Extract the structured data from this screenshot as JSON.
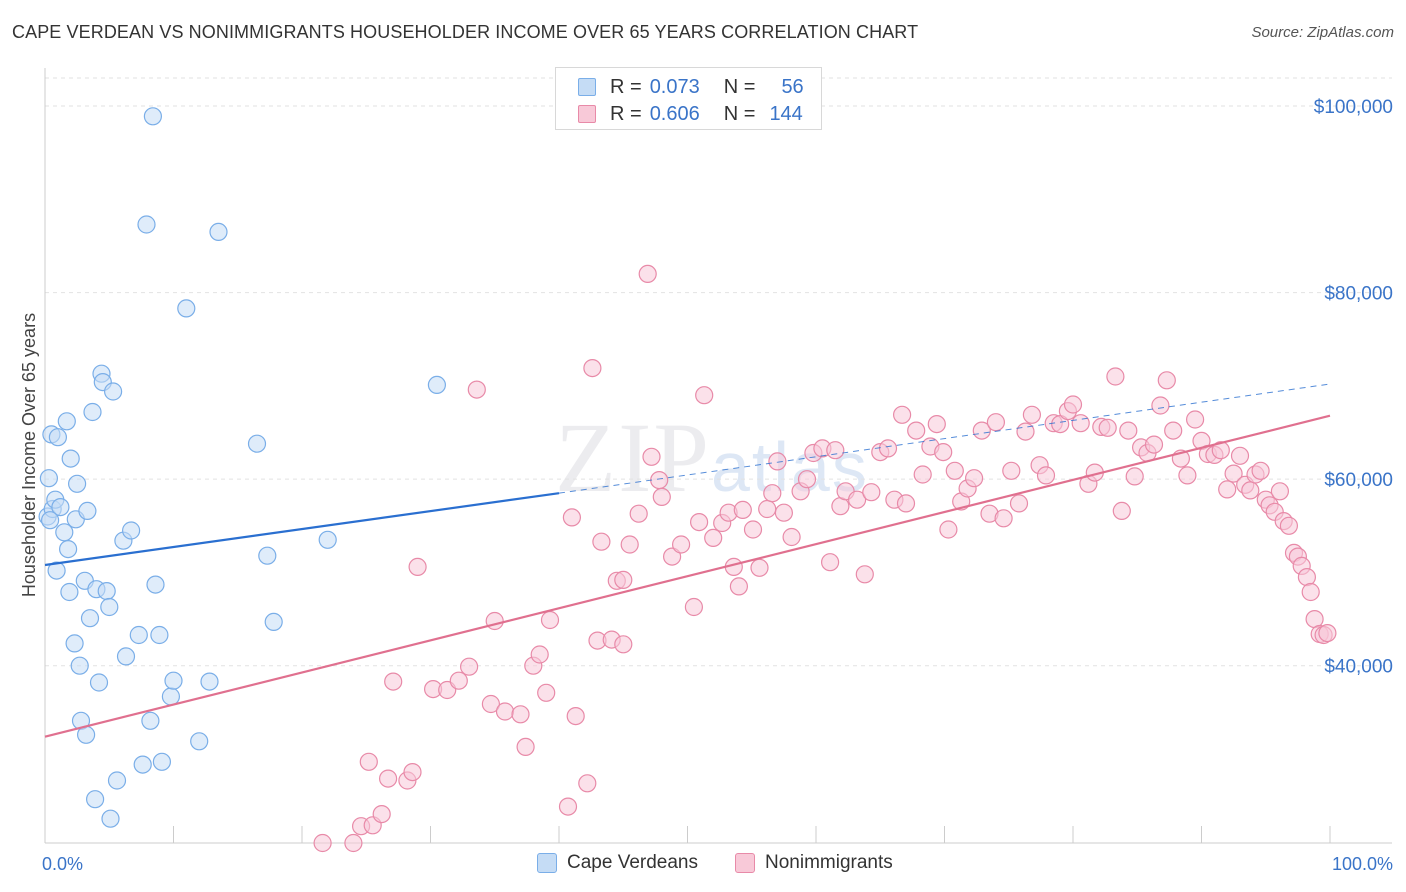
{
  "title": "CAPE VERDEAN VS NONIMMIGRANTS HOUSEHOLDER INCOME OVER 65 YEARS CORRELATION CHART",
  "source": "Source: ZipAtlas.com",
  "watermark": {
    "zip": "ZIP",
    "atlas": "atlas"
  },
  "legend": {
    "rows": [
      {
        "r_label": "R =",
        "r_value": "0.073",
        "n_label": "N =",
        "n_value": "56",
        "color": "#7aaee8",
        "fill": "#c5dcf5"
      },
      {
        "r_label": "R =",
        "r_value": "0.606",
        "n_label": "N =",
        "n_value": "144",
        "color": "#e88aa8",
        "fill": "#f8c9d8"
      }
    ]
  },
  "bottom_legend": [
    {
      "label": "Cape Verdeans",
      "color": "#7aaee8",
      "fill": "#c5dcf5"
    },
    {
      "label": "Nonimmigrants",
      "color": "#e88aa8",
      "fill": "#f8c9d8"
    }
  ],
  "chart_data": {
    "type": "scatter",
    "title": "CAPE VERDEAN VS NONIMMIGRANTS HOUSEHOLDER INCOME OVER 65 YEARS CORRELATION CHART",
    "xlabel": "",
    "ylabel": "Householder Income Over 65 years",
    "xlim": [
      0,
      100
    ],
    "ylim": [
      21000,
      103000
    ],
    "x_tick_labels": {
      "min": "0.0%",
      "max": "100.0%"
    },
    "y_ticks": [
      {
        "value": 40000,
        "label": "$40,000"
      },
      {
        "value": 60000,
        "label": "$60,000"
      },
      {
        "value": 80000,
        "label": "$80,000"
      },
      {
        "value": 100000,
        "label": "$100,000"
      }
    ],
    "grid": true,
    "series": [
      {
        "name": "Cape Verdeans",
        "color": "#7aaee8",
        "fill": "#c5dcf5",
        "trend_color": "#2a6fd0",
        "trend_solid": [
          [
            0,
            50800
          ],
          [
            40,
            58500
          ]
        ],
        "trend_dashed": [
          [
            40,
            58500
          ],
          [
            100,
            70200
          ]
        ],
        "points": [
          [
            0.2,
            56000
          ],
          [
            0.3,
            60100
          ],
          [
            0.5,
            64800
          ],
          [
            0.6,
            56800
          ],
          [
            0.8,
            57800
          ],
          [
            0.9,
            50200
          ],
          [
            1.0,
            64500
          ],
          [
            1.2,
            57000
          ],
          [
            1.5,
            54300
          ],
          [
            1.7,
            66200
          ],
          [
            1.8,
            52500
          ],
          [
            1.9,
            47900
          ],
          [
            2.0,
            62200
          ],
          [
            2.3,
            42400
          ],
          [
            2.4,
            55700
          ],
          [
            2.5,
            59500
          ],
          [
            2.7,
            40000
          ],
          [
            2.8,
            34100
          ],
          [
            3.1,
            49100
          ],
          [
            3.2,
            32600
          ],
          [
            3.3,
            56600
          ],
          [
            3.5,
            45100
          ],
          [
            3.7,
            67200
          ],
          [
            3.9,
            25700
          ],
          [
            4.0,
            48200
          ],
          [
            4.2,
            38200
          ],
          [
            4.4,
            71300
          ],
          [
            4.5,
            70400
          ],
          [
            4.8,
            48000
          ],
          [
            5.0,
            46300
          ],
          [
            5.1,
            23600
          ],
          [
            5.3,
            69400
          ],
          [
            5.6,
            27700
          ],
          [
            6.1,
            53400
          ],
          [
            6.3,
            41000
          ],
          [
            6.7,
            54500
          ],
          [
            7.3,
            43300
          ],
          [
            7.6,
            29400
          ],
          [
            7.9,
            87300
          ],
          [
            8.2,
            34100
          ],
          [
            8.4,
            98900
          ],
          [
            8.6,
            48700
          ],
          [
            8.9,
            43300
          ],
          [
            9.1,
            29700
          ],
          [
            9.8,
            36700
          ],
          [
            10.0,
            38400
          ],
          [
            11.0,
            78300
          ],
          [
            12.0,
            31900
          ],
          [
            12.8,
            38300
          ],
          [
            13.5,
            86500
          ],
          [
            16.5,
            63800
          ],
          [
            17.3,
            51800
          ],
          [
            17.8,
            44700
          ],
          [
            22.0,
            53500
          ],
          [
            30.5,
            70100
          ],
          [
            0.4,
            55600
          ]
        ]
      },
      {
        "name": "Nonimmigrants",
        "color": "#e88aa8",
        "fill": "#f8c9d8",
        "trend_color": "#e0708f",
        "trend_solid": [
          [
            0,
            32400
          ],
          [
            100,
            66800
          ]
        ],
        "points": [
          [
            21.6,
            21000
          ],
          [
            24.0,
            21000
          ],
          [
            24.6,
            22800
          ],
          [
            25.2,
            29700
          ],
          [
            25.5,
            22900
          ],
          [
            26.2,
            24100
          ],
          [
            26.7,
            27900
          ],
          [
            27.1,
            38300
          ],
          [
            28.2,
            27700
          ],
          [
            28.6,
            28600
          ],
          [
            29.0,
            50600
          ],
          [
            30.2,
            37500
          ],
          [
            31.3,
            37400
          ],
          [
            32.2,
            38400
          ],
          [
            33.0,
            39900
          ],
          [
            33.6,
            69600
          ],
          [
            34.7,
            35900
          ],
          [
            35.0,
            44800
          ],
          [
            35.8,
            35100
          ],
          [
            37.0,
            34800
          ],
          [
            37.4,
            31300
          ],
          [
            38.0,
            40000
          ],
          [
            38.5,
            41200
          ],
          [
            39.0,
            37100
          ],
          [
            39.3,
            44900
          ],
          [
            40.7,
            24900
          ],
          [
            41.0,
            55900
          ],
          [
            41.3,
            34600
          ],
          [
            42.2,
            27400
          ],
          [
            42.6,
            71900
          ],
          [
            43.0,
            42700
          ],
          [
            43.3,
            53300
          ],
          [
            44.1,
            42800
          ],
          [
            44.5,
            49100
          ],
          [
            45.0,
            42300
          ],
          [
            45.5,
            53000
          ],
          [
            46.2,
            56300
          ],
          [
            46.9,
            82000
          ],
          [
            47.2,
            62400
          ],
          [
            47.8,
            59900
          ],
          [
            48.0,
            58100
          ],
          [
            48.8,
            51700
          ],
          [
            49.5,
            53000
          ],
          [
            50.5,
            46300
          ],
          [
            50.9,
            55400
          ],
          [
            51.3,
            69000
          ],
          [
            52.0,
            53700
          ],
          [
            52.7,
            55300
          ],
          [
            53.2,
            56400
          ],
          [
            53.6,
            50600
          ],
          [
            54.0,
            48500
          ],
          [
            54.3,
            56700
          ],
          [
            55.1,
            54600
          ],
          [
            55.6,
            50500
          ],
          [
            56.2,
            56800
          ],
          [
            56.6,
            58500
          ],
          [
            57.0,
            61900
          ],
          [
            57.5,
            56400
          ],
          [
            58.1,
            53800
          ],
          [
            58.8,
            58700
          ],
          [
            59.3,
            60000
          ],
          [
            59.8,
            62800
          ],
          [
            60.5,
            63300
          ],
          [
            61.1,
            51100
          ],
          [
            61.5,
            63100
          ],
          [
            61.9,
            57100
          ],
          [
            62.3,
            58700
          ],
          [
            63.2,
            57800
          ],
          [
            63.8,
            49800
          ],
          [
            64.3,
            58600
          ],
          [
            65.0,
            62900
          ],
          [
            65.6,
            63300
          ],
          [
            66.1,
            57800
          ],
          [
            66.7,
            66900
          ],
          [
            67.0,
            57400
          ],
          [
            67.8,
            65200
          ],
          [
            68.3,
            60500
          ],
          [
            68.9,
            63500
          ],
          [
            69.4,
            65900
          ],
          [
            69.9,
            62900
          ],
          [
            70.3,
            54600
          ],
          [
            70.8,
            60900
          ],
          [
            71.3,
            57600
          ],
          [
            71.8,
            59000
          ],
          [
            72.3,
            60100
          ],
          [
            72.9,
            65200
          ],
          [
            73.5,
            56300
          ],
          [
            74.0,
            66100
          ],
          [
            74.6,
            55800
          ],
          [
            75.2,
            60900
          ],
          [
            75.8,
            57400
          ],
          [
            76.3,
            65100
          ],
          [
            76.8,
            66900
          ],
          [
            77.4,
            61500
          ],
          [
            77.9,
            60400
          ],
          [
            78.5,
            66000
          ],
          [
            79.0,
            65900
          ],
          [
            79.6,
            67300
          ],
          [
            80.0,
            68000
          ],
          [
            80.6,
            66000
          ],
          [
            81.2,
            59500
          ],
          [
            81.7,
            60700
          ],
          [
            82.2,
            65600
          ],
          [
            82.7,
            65500
          ],
          [
            83.3,
            71000
          ],
          [
            83.8,
            56600
          ],
          [
            84.3,
            65200
          ],
          [
            84.8,
            60300
          ],
          [
            85.3,
            63400
          ],
          [
            85.8,
            62800
          ],
          [
            86.3,
            63700
          ],
          [
            86.8,
            67900
          ],
          [
            87.3,
            70600
          ],
          [
            87.8,
            65200
          ],
          [
            88.4,
            62200
          ],
          [
            88.9,
            60400
          ],
          [
            89.5,
            66400
          ],
          [
            90.0,
            64100
          ],
          [
            90.5,
            62700
          ],
          [
            91.0,
            62600
          ],
          [
            91.5,
            63100
          ],
          [
            92.0,
            58900
          ],
          [
            92.5,
            60600
          ],
          [
            93.0,
            62500
          ],
          [
            93.4,
            59400
          ],
          [
            93.8,
            58800
          ],
          [
            94.2,
            60500
          ],
          [
            94.6,
            60900
          ],
          [
            95.0,
            57800
          ],
          [
            95.3,
            57200
          ],
          [
            95.7,
            56500
          ],
          [
            96.1,
            58700
          ],
          [
            96.4,
            55500
          ],
          [
            96.8,
            55000
          ],
          [
            97.2,
            52100
          ],
          [
            97.5,
            51700
          ],
          [
            97.8,
            50700
          ],
          [
            98.2,
            49500
          ],
          [
            98.5,
            47900
          ],
          [
            98.8,
            45000
          ],
          [
            99.2,
            43400
          ],
          [
            99.5,
            43300
          ],
          [
            99.8,
            43500
          ],
          [
            45.0,
            49200
          ]
        ]
      }
    ]
  }
}
